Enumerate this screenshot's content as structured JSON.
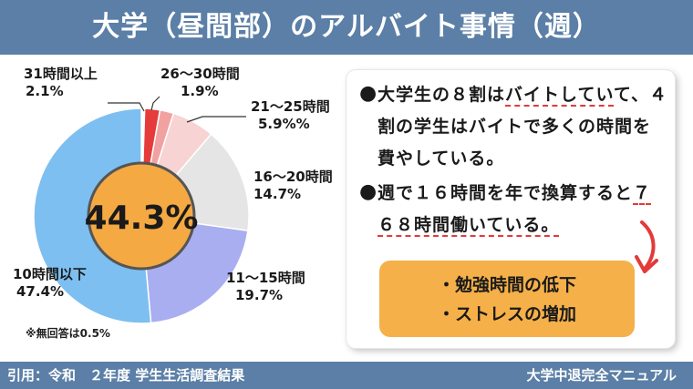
{
  "title": "大学（昼間部）のアルバイト事情（週）",
  "chart_data": {
    "type": "pie",
    "center_label": "44.3%",
    "slices": [
      {
        "label": "31時間以上",
        "value_text": "2.1%",
        "value": 2.1,
        "color": "#e63b3b"
      },
      {
        "label": "26〜30時間",
        "value_text": "1.9%",
        "value": 1.9,
        "color": "#f2a1a1"
      },
      {
        "label": "21〜25時間",
        "value_text": "5.9%%",
        "value": 5.9,
        "color": "#f7d3d3"
      },
      {
        "label": "16〜20時間",
        "value_text": "14.7%",
        "value": 14.7,
        "color": "#e5e5e5"
      },
      {
        "label": "11〜15時間",
        "value_text": "19.7%",
        "value": 19.7,
        "color": "#a9aef0"
      },
      {
        "label": "10時間以下",
        "value_text": "47.4%",
        "value": 47.4,
        "color": "#7dbff0"
      }
    ],
    "note": "※無回答は0.5%"
  },
  "panel": {
    "bullet1_part1": "大学生の８割は",
    "bullet1_part2": "バイトしてい",
    "bullet1_rest": "て、４割の学生はバイトで多くの時間を費やしている。",
    "bullet2_part1": "週で１６時間を年で換算すると",
    "bullet2_part2": "７６８時間働いている。",
    "items": [
      "・勉強時間の低下",
      "・ストレスの増加"
    ]
  },
  "footer": {
    "source": "引用：令和　２年度 学生生活調査結果",
    "brand": "大学中退完全マニュアル"
  },
  "colors": {
    "header": "#5b7fa6",
    "center_circle": "#f5a942",
    "orange_box": "#f5b049",
    "accent_red": "#e33a3a"
  }
}
